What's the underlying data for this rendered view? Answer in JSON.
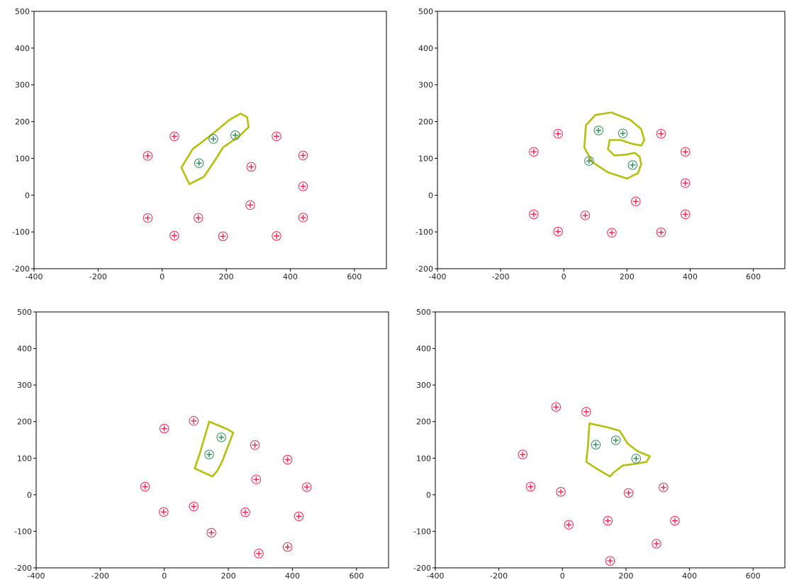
{
  "colors": {
    "negative": "#ff1f4b",
    "positive": "#2e8b57",
    "boundary": "#b5c00c"
  },
  "chart_data": [
    {
      "type": "scatter",
      "xlim": [
        -400,
        700
      ],
      "ylim": [
        -200,
        500
      ],
      "xticks": [
        "-400",
        "-200",
        "0",
        "200",
        "400",
        "600"
      ],
      "yticks": [
        "-200",
        "-100",
        "0",
        "100",
        "200",
        "300",
        "400",
        "500"
      ],
      "grid": false,
      "series": [
        {
          "role": "positive",
          "points": [
            [
              115,
              87
            ],
            [
              160,
              153
            ],
            [
              228,
              163
            ]
          ]
        },
        {
          "role": "negative",
          "points": [
            [
              -45,
              107
            ],
            [
              38,
              160
            ],
            [
              357,
              160
            ],
            [
              440,
              108
            ],
            [
              278,
              77
            ],
            [
              440,
              24
            ],
            [
              275,
              -27
            ],
            [
              -45,
              -62
            ],
            [
              113,
              -62
            ],
            [
              440,
              -61
            ],
            [
              38,
              -110
            ],
            [
              190,
              -112
            ],
            [
              357,
              -111
            ]
          ]
        }
      ],
      "boundary": [
        [
          85,
          30
        ],
        [
          60,
          75
        ],
        [
          95,
          125
        ],
        [
          155,
          165
        ],
        [
          210,
          205
        ],
        [
          245,
          222
        ],
        [
          265,
          212
        ],
        [
          270,
          185
        ],
        [
          240,
          160
        ],
        [
          190,
          130
        ],
        [
          165,
          95
        ],
        [
          130,
          50
        ],
        [
          85,
          30
        ]
      ]
    },
    {
      "type": "scatter",
      "xlim": [
        -400,
        700
      ],
      "ylim": [
        -200,
        500
      ],
      "xticks": [
        "-400",
        "-200",
        "0",
        "200",
        "400",
        "600"
      ],
      "yticks": [
        "-200",
        "-100",
        "0",
        "100",
        "200",
        "300",
        "400",
        "500"
      ],
      "grid": false,
      "series": [
        {
          "role": "positive",
          "points": [
            [
              110,
              176
            ],
            [
              187,
              168
            ],
            [
              80,
              93
            ],
            [
              218,
              82
            ]
          ]
        },
        {
          "role": "negative",
          "points": [
            [
              -95,
              118
            ],
            [
              -18,
              167
            ],
            [
              308,
              167
            ],
            [
              385,
              118
            ],
            [
              385,
              33
            ],
            [
              228,
              -17
            ],
            [
              -95,
              -52
            ],
            [
              68,
              -55
            ],
            [
              385,
              -52
            ],
            [
              -18,
              -99
            ],
            [
              152,
              -102
            ],
            [
              308,
              -101
            ]
          ]
        }
      ],
      "boundary": [
        [
          150,
          225
        ],
        [
          100,
          218
        ],
        [
          70,
          190
        ],
        [
          65,
          130
        ],
        [
          90,
          90
        ],
        [
          140,
          62
        ],
        [
          200,
          45
        ],
        [
          235,
          60
        ],
        [
          245,
          85
        ],
        [
          240,
          105
        ],
        [
          225,
          115
        ],
        [
          195,
          110
        ],
        [
          160,
          108
        ],
        [
          140,
          125
        ],
        [
          145,
          150
        ],
        [
          180,
          150
        ],
        [
          215,
          140
        ],
        [
          245,
          135
        ],
        [
          255,
          150
        ],
        [
          245,
          180
        ],
        [
          210,
          205
        ],
        [
          180,
          215
        ],
        [
          150,
          225
        ]
      ]
    },
    {
      "type": "scatter",
      "xlim": [
        -400,
        700
      ],
      "ylim": [
        -200,
        500
      ],
      "xticks": [
        "-400",
        "-200",
        "0",
        "200",
        "400",
        "600"
      ],
      "yticks": [
        "-200",
        "-100",
        "0",
        "100",
        "200",
        "300",
        "400",
        "500"
      ],
      "grid": false,
      "series": [
        {
          "role": "positive",
          "points": [
            [
              140,
              110
            ],
            [
              178,
              157
            ]
          ]
        },
        {
          "role": "negative",
          "points": [
            [
              0,
              181
            ],
            [
              92,
              202
            ],
            [
              283,
              136
            ],
            [
              385,
              96
            ],
            [
              -60,
              22
            ],
            [
              287,
              42
            ],
            [
              445,
              21
            ],
            [
              -2,
              -47
            ],
            [
              92,
              -32
            ],
            [
              253,
              -48
            ],
            [
              420,
              -59
            ],
            [
              147,
              -104
            ],
            [
              295,
              -161
            ],
            [
              385,
              -143
            ]
          ]
        }
      ],
      "boundary": [
        [
          140,
          200
        ],
        [
          195,
          180
        ],
        [
          215,
          170
        ],
        [
          180,
          90
        ],
        [
          165,
          65
        ],
        [
          150,
          50
        ],
        [
          95,
          72
        ],
        [
          110,
          110
        ],
        [
          125,
          155
        ],
        [
          140,
          200
        ]
      ]
    },
    {
      "type": "scatter",
      "xlim": [
        -400,
        700
      ],
      "ylim": [
        -200,
        500
      ],
      "xticks": [
        "-400",
        "-200",
        "0",
        "200",
        "400",
        "600"
      ],
      "yticks": [
        "-200",
        "-100",
        "0",
        "100",
        "200",
        "300",
        "400",
        "500"
      ],
      "grid": false,
      "series": [
        {
          "role": "positive",
          "points": [
            [
              105,
              137
            ],
            [
              168,
              149
            ],
            [
              232,
              99
            ]
          ]
        },
        {
          "role": "negative",
          "points": [
            [
              -20,
              240
            ],
            [
              75,
              227
            ],
            [
              -125,
              110
            ],
            [
              -100,
              22
            ],
            [
              -5,
              8
            ],
            [
              208,
              5
            ],
            [
              318,
              20
            ],
            [
              20,
              -82
            ],
            [
              143,
              -71
            ],
            [
              354,
              -71
            ],
            [
              296,
              -134
            ],
            [
              150,
              -181
            ]
          ]
        }
      ],
      "boundary": [
        [
          85,
          195
        ],
        [
          140,
          185
        ],
        [
          180,
          175
        ],
        [
          205,
          140
        ],
        [
          235,
          120
        ],
        [
          275,
          105
        ],
        [
          265,
          90
        ],
        [
          235,
          85
        ],
        [
          190,
          80
        ],
        [
          160,
          60
        ],
        [
          150,
          50
        ],
        [
          110,
          70
        ],
        [
          75,
          90
        ],
        [
          80,
          130
        ],
        [
          85,
          195
        ]
      ]
    }
  ]
}
